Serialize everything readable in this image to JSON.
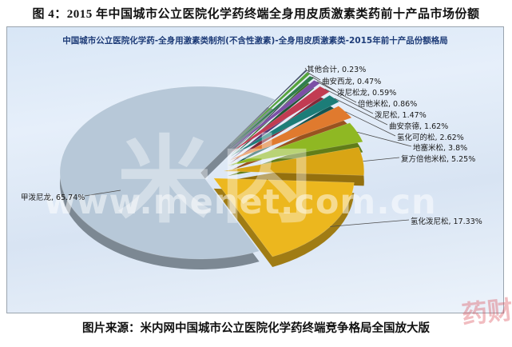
{
  "page": {
    "figure_title": "图 4：2015 年中国城市公立医院化学药终端全身用皮质激素类药前十产品市场份额",
    "source_caption": "图片来源：米内网中国城市公立医院化学药终端竞争格局全国放大版"
  },
  "chart_data": {
    "type": "pie",
    "title": "中国城市公立医院化学药-全身用激素类制剂(不含性激素)-全身用皮质激素类-2015年前十产品份额格局",
    "unit": "%",
    "style": "3d-exploded-pie",
    "legend_position": "none",
    "labels_style": "callout-lines",
    "slices": [
      {
        "label": "其他合计",
        "value": 0.23,
        "color": "#44506a"
      },
      {
        "label": "曲安西龙",
        "value": 0.47,
        "color": "#55a33c"
      },
      {
        "label": "泼尼松龙",
        "value": 0.59,
        "color": "#2f7d4c"
      },
      {
        "label": "倍他米松",
        "value": 0.86,
        "color": "#7b4fa6"
      },
      {
        "label": "泼尼松",
        "value": 1.47,
        "color": "#c23b52"
      },
      {
        "label": "曲安奈德",
        "value": 1.62,
        "color": "#1c7d78"
      },
      {
        "label": "氢化可的松",
        "value": 2.62,
        "color": "#e07a2e"
      },
      {
        "label": "地塞米松",
        "value": 3.8,
        "color": "#8fb823"
      },
      {
        "label": "复方倍他米松",
        "value": 5.25,
        "color": "#d9a514"
      },
      {
        "label": "氢化泼尼松",
        "value": 17.33,
        "color": "#ecb71e"
      },
      {
        "label": "甲泼尼龙",
        "value": 65.74,
        "color": "#b7c8d8"
      }
    ]
  },
  "watermarks": {
    "brand_large": "米内",
    "url": "www.menet.com.cn",
    "corner": "药财透"
  }
}
